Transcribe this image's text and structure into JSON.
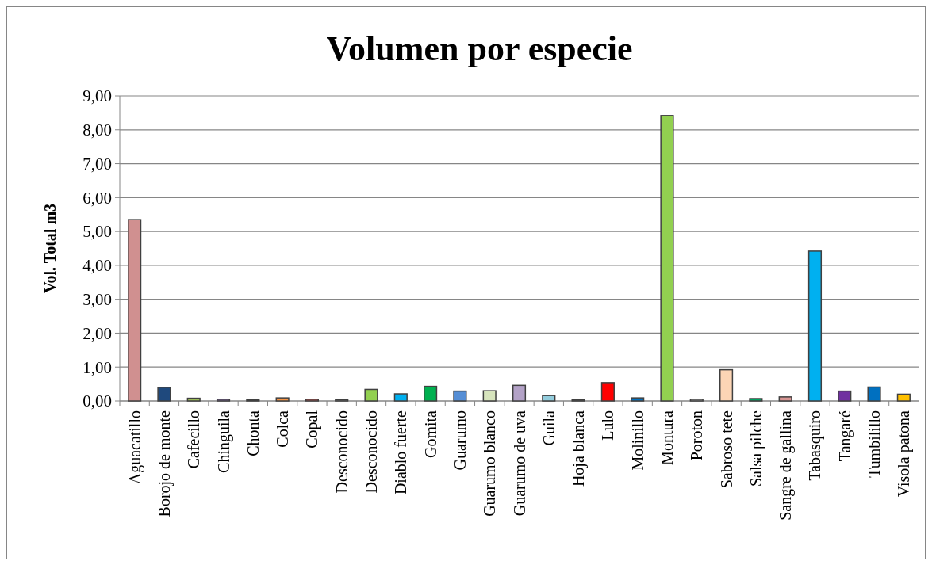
{
  "chart_data": {
    "type": "bar",
    "title": "Volumen por especie",
    "ylabel": "Vol. Total m3",
    "categories": [
      "Aguacatillo",
      "Borojo de monte",
      "Cafecillo",
      "Chinguila",
      "Chonta",
      "Colca",
      "Copal",
      "Desconocido",
      "Desconocido",
      "Diablo fuerte",
      "Gomita",
      "Guarumo",
      "Guarumo blanco",
      "Guarumo de uva",
      "Guila",
      "Hoja blanca",
      "Lulo",
      "Molinillo",
      "Montura",
      "Poroton",
      "Sabroso tete",
      "Salsa pilche",
      "Sangre de gallina",
      "Tabasquiro",
      "Tangaré",
      "Tumbilillo",
      "Visola patona"
    ],
    "values": [
      5.35,
      0.4,
      0.08,
      0.05,
      0.03,
      0.09,
      0.05,
      0.04,
      0.34,
      0.21,
      0.43,
      0.29,
      0.3,
      0.46,
      0.16,
      0.04,
      0.54,
      0.09,
      8.42,
      0.05,
      0.92,
      0.07,
      0.12,
      4.42,
      0.29,
      0.41,
      0.2
    ],
    "colors": [
      "#d09090",
      "#1f497d",
      "#9bbb59",
      "#8064a2",
      "#bfbfbf",
      "#f79646",
      "#c0504d",
      "#7f7f7f",
      "#92d050",
      "#00b0f0",
      "#00b050",
      "#558ed5",
      "#d7e4bd",
      "#b3a2c7",
      "#93cddd",
      "#595959",
      "#ff0000",
      "#0070c0",
      "#92d050",
      "#a6a6a6",
      "#fcd5b5",
      "#00a060",
      "#d99694",
      "#00b0f0",
      "#7030a0",
      "#0070c0",
      "#ffc000"
    ],
    "ylim": [
      0,
      9
    ],
    "yticks": [
      {
        "value": 0,
        "label": "0,00"
      },
      {
        "value": 1,
        "label": "1,00"
      },
      {
        "value": 2,
        "label": "2,00"
      },
      {
        "value": 3,
        "label": "3,00"
      },
      {
        "value": 4,
        "label": "4,00"
      },
      {
        "value": 5,
        "label": "5,00"
      },
      {
        "value": 6,
        "label": "6,00"
      },
      {
        "value": 7,
        "label": "7,00"
      },
      {
        "value": 8,
        "label": "8,00"
      },
      {
        "value": 9,
        "label": "9,00"
      }
    ],
    "grid": "y"
  }
}
